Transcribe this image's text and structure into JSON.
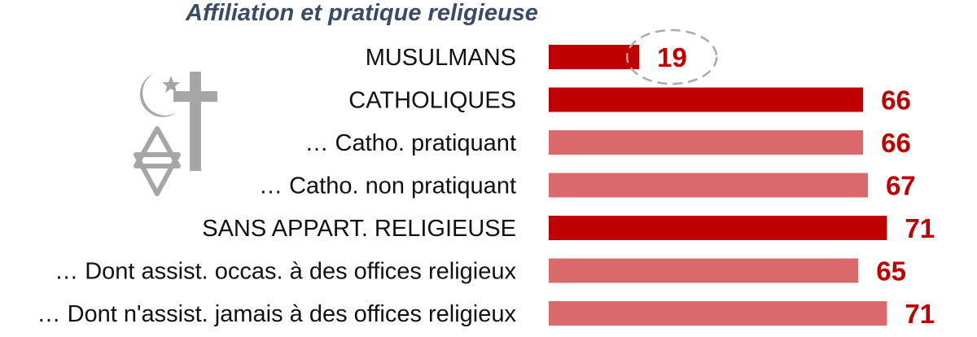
{
  "chart_data": {
    "type": "bar",
    "orientation": "horizontal",
    "title": "Affiliation et pratique religieuse",
    "categories": [
      "MUSULMANS",
      "CATHOLIQUES",
      "… Catho. pratiquant",
      "… Catho. non pratiquant",
      "SANS APPART. RELIGIEUSE",
      "… Dont assist. occas. à des offices religieux",
      "… Dont n'assist. jamais à des offices religieux"
    ],
    "values": [
      19,
      66,
      66,
      67,
      71,
      65,
      71
    ],
    "highlighted": [
      true,
      false,
      false,
      false,
      false,
      false,
      false
    ],
    "level": [
      "main",
      "main",
      "sub",
      "sub",
      "main",
      "sub",
      "sub"
    ],
    "xlim": [
      0,
      100
    ],
    "grid": false,
    "legend": "none",
    "colors": {
      "main_bar": "#c00000",
      "sub_bar": "#d9696a",
      "value_text": "#c00000",
      "label_text": "#111111",
      "title_text": "#3b4a66",
      "highlight_ring": "#aaaaaa",
      "icons": "#a6a6a6"
    }
  },
  "decor": {
    "icons": [
      "crescent-star-icon",
      "latin-cross-icon",
      "star-of-david-icon"
    ]
  }
}
